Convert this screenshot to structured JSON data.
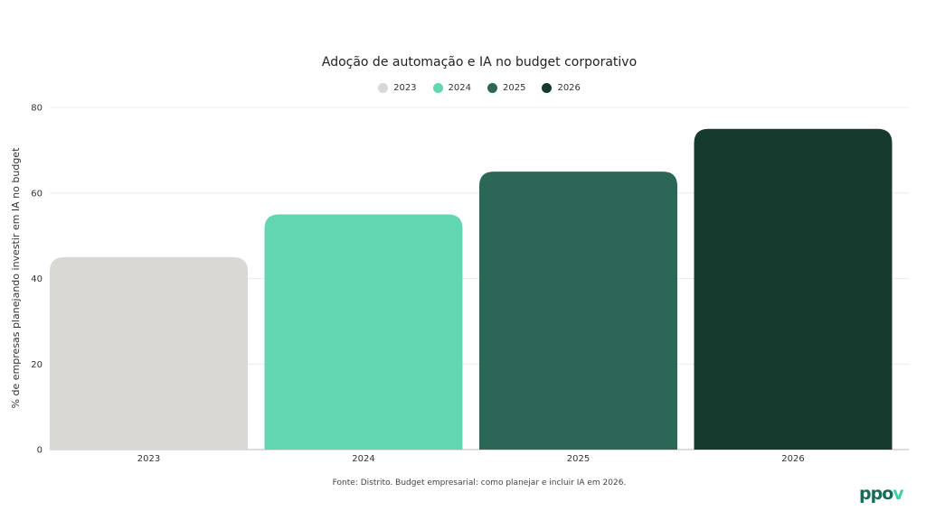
{
  "chart_data": {
    "type": "bar",
    "title": "Adoção de automação e IA no budget corporativo",
    "categories": [
      "2023",
      "2024",
      "2025",
      "2026"
    ],
    "values": [
      45,
      55,
      65,
      75
    ],
    "colors": [
      "#d9d8d4",
      "#62d5b1",
      "#2c6657",
      "#173a2f"
    ],
    "legend": [
      "2023",
      "2024",
      "2025",
      "2026"
    ],
    "legend_position": "top-center",
    "xlabel": "",
    "ylabel": "% de empresas planejando investir em IA no budget",
    "ylim": [
      0,
      80
    ],
    "yticks": [
      0,
      20,
      40,
      60,
      80
    ],
    "grid": true
  },
  "source": "Fonte: Distrito. Budget empresarial: como planejar e incluir IA em 2026.",
  "logo": "ppov"
}
